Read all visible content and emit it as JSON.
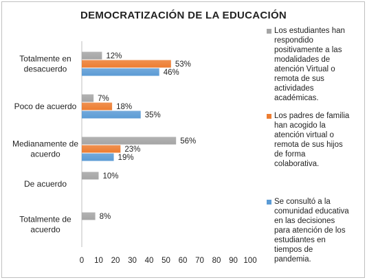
{
  "chart_data": {
    "type": "bar",
    "orientation": "horizontal",
    "title": "DEMOCRATIZACIÓN DE LA EDUCACIÓN",
    "categories": [
      [
        "Totalmente en",
        "desacuerdo"
      ],
      [
        "Poco de acuerdo"
      ],
      [
        "Medianamente de",
        "acuerdo"
      ],
      [
        "De acuerdo"
      ],
      [
        "Totalmente de",
        "acuerdo"
      ]
    ],
    "series": [
      {
        "name": "Los estudiantes han respondido positivamente a las modalidades de atención Virtual o remota de sus actividades académicas.",
        "name_lines": [
          "Los estudiantes han",
          "respondido",
          "positivamente a las",
          "modalidades de",
          "atención Virtual o",
          "remota de sus",
          "actividades",
          "académicas."
        ],
        "color": "#a5a5a5",
        "values": [
          12,
          7,
          56,
          10,
          8
        ],
        "labels": [
          "12%",
          "7%",
          "56%",
          "10%",
          "8%"
        ]
      },
      {
        "name": "Los padres de familia han acogido la atención virtual o remota de sus hijos de forma colaborativa.",
        "name_lines": [
          "Los padres de familia",
          "han acogido la",
          "atención virtual o",
          "remota de sus hijos",
          "de forma",
          "colaborativa."
        ],
        "color": "#ed7d31",
        "values": [
          53,
          18,
          23,
          null,
          null
        ],
        "labels": [
          "53%",
          "18%",
          "23%",
          "",
          ""
        ]
      },
      {
        "name": "Se consultó a la comunidad educativa en las decisiones para atención de los estudiantes en tiempos de pandemia.",
        "name_lines": [
          "Se consultó a la",
          "comunidad educativa",
          "en las decisiones",
          "para atención de los",
          "estudiantes en",
          "tiempos de",
          "pandemia."
        ],
        "color": "#5b9bd5",
        "values": [
          46,
          35,
          19,
          null,
          null
        ],
        "labels": [
          "46%",
          "35%",
          "19%",
          "",
          ""
        ]
      }
    ],
    "xlim": [
      0,
      100
    ],
    "xticks": [
      "0",
      "10",
      "20",
      "30",
      "40",
      "50",
      "60",
      "70",
      "80",
      "90",
      "100"
    ],
    "grid": false,
    "legend_position": "right"
  }
}
